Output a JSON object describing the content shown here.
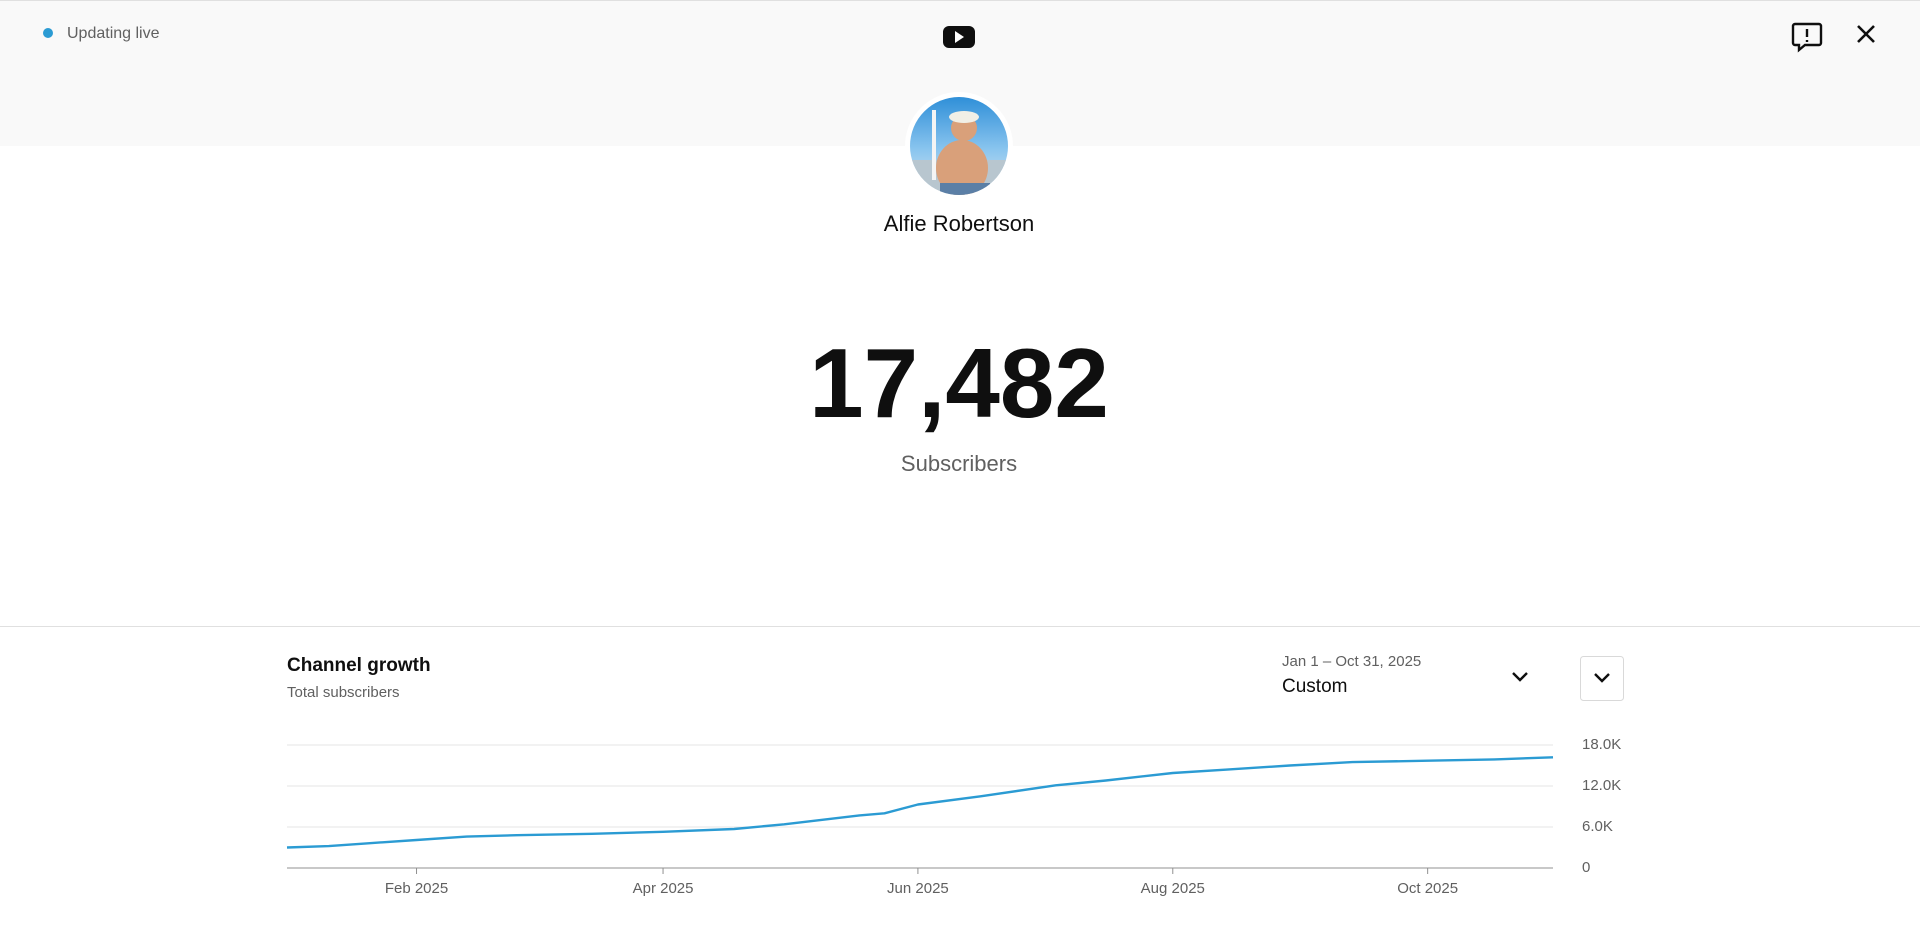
{
  "header": {
    "status": "Updating live"
  },
  "channel": {
    "name": "Alfie Robertson"
  },
  "counter": {
    "value": "17,482",
    "label": "Subscribers"
  },
  "chart_data": {
    "type": "line",
    "title": "Channel growth",
    "subtitle": "Total subscribers",
    "date_range": "Jan 1 – Oct 31, 2025",
    "period": "Custom",
    "color": "#2b9bd3",
    "x": [
      "2025-01-01",
      "2025-01-11",
      "2025-01-20",
      "2025-02-01",
      "2025-02-13",
      "2025-02-25",
      "2025-03-15",
      "2025-04-01",
      "2025-04-18",
      "2025-04-30",
      "2025-05-18",
      "2025-05-24",
      "2025-06-01",
      "2025-06-16",
      "2025-07-04",
      "2025-07-16",
      "2025-08-01",
      "2025-08-14",
      "2025-08-29",
      "2025-09-13",
      "2025-10-01",
      "2025-10-17",
      "2025-10-31"
    ],
    "values": [
      3000,
      3200,
      3600,
      4100,
      4600,
      4800,
      5000,
      5300,
      5700,
      6400,
      7700,
      8000,
      9300,
      10500,
      12100,
      12800,
      13900,
      14400,
      15000,
      15500,
      15700,
      15900,
      16200
    ],
    "xlim": [
      "2025-01-01",
      "2025-10-31"
    ],
    "xticks": [
      {
        "value": "2025-02-01",
        "label": "Feb 2025"
      },
      {
        "value": "2025-04-01",
        "label": "Apr 2025"
      },
      {
        "value": "2025-06-01",
        "label": "Jun 2025"
      },
      {
        "value": "2025-08-01",
        "label": "Aug 2025"
      },
      {
        "value": "2025-10-01",
        "label": "Oct 2025"
      }
    ],
    "ylim": [
      0,
      18000
    ],
    "yticks": [
      0,
      {
        "value": 6000,
        "label": "6.0K"
      },
      {
        "value": 12000,
        "label": "12.0K"
      },
      {
        "value": 18000,
        "label": "18.0K"
      }
    ],
    "grid": true
  }
}
